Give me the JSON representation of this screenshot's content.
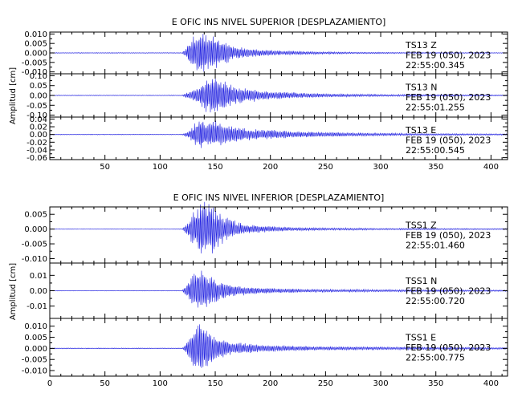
{
  "chart_data": [
    {
      "type": "line",
      "title": "E OFIC INS NIVEL SUPERIOR [DESPLAZAMIENTO]",
      "xlabel": "",
      "ylabel": "Amplitud [cm]",
      "xlim": [
        0,
        415
      ],
      "xticks": [
        50,
        100,
        150,
        200,
        250,
        300,
        350,
        400
      ],
      "xtick_labels": [
        "50",
        "100",
        "150",
        "200",
        "250",
        "300",
        "350",
        "400"
      ],
      "grid": false,
      "series_color": "#1f1fe0",
      "panels": [
        {
          "component": "Z",
          "ylim": [
            -0.011,
            0.011
          ],
          "yticks": [
            -0.01,
            -0.005,
            0.0,
            0.005,
            0.01
          ],
          "ytick_labels": [
            "-0.010",
            "-0.005",
            "0.000",
            "0.005",
            "0.010"
          ],
          "annotation": [
            "TS13   Z",
            "FEB 19 (050), 2023",
            "22:55:00.345"
          ],
          "envelope": [
            [
              0,
              0.0002
            ],
            [
              120,
              0.0002
            ],
            [
              124,
              0.003
            ],
            [
              128,
              0.009
            ],
            [
              135,
              0.011
            ],
            [
              142,
              0.01
            ],
            [
              150,
              0.009
            ],
            [
              165,
              0.004
            ],
            [
              190,
              0.0018
            ],
            [
              230,
              0.0009
            ],
            [
              270,
              0.0005
            ],
            [
              330,
              0.0003
            ],
            [
              415,
              0.0002
            ]
          ]
        },
        {
          "component": "N",
          "ylim": [
            -0.11,
            0.11
          ],
          "yticks": [
            -0.1,
            -0.05,
            0.0,
            0.05,
            0.1
          ],
          "ytick_labels": [
            "-0.10",
            "-0.05",
            "0.00",
            "0.05",
            "0.10"
          ],
          "annotation": [
            "TS13   N",
            "FEB 19 (050), 2023",
            "22:55:01.255"
          ],
          "envelope": [
            [
              0,
              0.002
            ],
            [
              120,
              0.002
            ],
            [
              126,
              0.02
            ],
            [
              135,
              0.05
            ],
            [
              142,
              0.09
            ],
            [
              148,
              0.1
            ],
            [
              156,
              0.08
            ],
            [
              170,
              0.045
            ],
            [
              200,
              0.02
            ],
            [
              250,
              0.01
            ],
            [
              300,
              0.006
            ],
            [
              415,
              0.003
            ]
          ]
        },
        {
          "component": "E",
          "ylim": [
            -0.065,
            0.045
          ],
          "yticks": [
            -0.06,
            -0.04,
            -0.02,
            0.0,
            0.02,
            0.04
          ],
          "ytick_labels": [
            "-0.06",
            "-0.04",
            "-0.02",
            "0.00",
            "0.02",
            "0.04"
          ],
          "annotation": [
            "TS13   E",
            "FEB 19 (050), 2023",
            "22:55:00.545"
          ],
          "envelope": [
            [
              0,
              0.001
            ],
            [
              120,
              0.001
            ],
            [
              126,
              0.01
            ],
            [
              133,
              0.035
            ],
            [
              137,
              0.045
            ],
            [
              142,
              0.03
            ],
            [
              148,
              0.04
            ],
            [
              160,
              0.025
            ],
            [
              185,
              0.015
            ],
            [
              220,
              0.009
            ],
            [
              270,
              0.005
            ],
            [
              330,
              0.003
            ],
            [
              415,
              0.002
            ]
          ]
        }
      ]
    },
    {
      "type": "line",
      "title": "E OFIC INS NIVEL INFERIOR [DESPLAZAMIENTO]",
      "xlabel": "",
      "ylabel": "Amplitud [cm]",
      "xlim": [
        0,
        415
      ],
      "xticks": [
        0,
        50,
        100,
        150,
        200,
        250,
        300,
        350,
        400
      ],
      "xtick_labels": [
        "0",
        "50",
        "100",
        "150",
        "200",
        "250",
        "300",
        "350",
        "400"
      ],
      "grid": false,
      "series_color": "#1f1fe0",
      "panels": [
        {
          "component": "Z",
          "ylim": [
            -0.0115,
            0.0075
          ],
          "yticks": [
            -0.01,
            -0.005,
            0.0,
            0.005
          ],
          "ytick_labels": [
            "-0.010",
            "-0.005",
            "0.000",
            "0.005"
          ],
          "annotation": [
            "TSS1   Z",
            "FEB 19 (050), 2023",
            "22:55:01.460"
          ],
          "envelope": [
            [
              0,
              0.0001
            ],
            [
              120,
              0.0001
            ],
            [
              124,
              0.002
            ],
            [
              130,
              0.006
            ],
            [
              138,
              0.01
            ],
            [
              145,
              0.009
            ],
            [
              150,
              0.008
            ],
            [
              160,
              0.004
            ],
            [
              180,
              0.0015
            ],
            [
              220,
              0.0006
            ],
            [
              300,
              0.0003
            ],
            [
              415,
              0.0002
            ]
          ]
        },
        {
          "component": "N",
          "ylim": [
            -0.018,
            0.018
          ],
          "yticks": [
            -0.01,
            0.0,
            0.01
          ],
          "ytick_labels": [
            "-0.01",
            "0.00",
            "0.01"
          ],
          "annotation": [
            "TSS1   N",
            "FEB 19 (050), 2023",
            "22:55:00.720"
          ],
          "envelope": [
            [
              0,
              0.0002
            ],
            [
              120,
              0.0002
            ],
            [
              124,
              0.004
            ],
            [
              130,
              0.012
            ],
            [
              136,
              0.016
            ],
            [
              142,
              0.012
            ],
            [
              150,
              0.008
            ],
            [
              165,
              0.004
            ],
            [
              190,
              0.002
            ],
            [
              240,
              0.001
            ],
            [
              415,
              0.0005
            ]
          ]
        },
        {
          "component": "E",
          "ylim": [
            -0.0125,
            0.0135
          ],
          "yticks": [
            -0.01,
            -0.005,
            0.0,
            0.005,
            0.01
          ],
          "ytick_labels": [
            "-0.010",
            "-0.005",
            "0.000",
            "0.005",
            "0.010"
          ],
          "annotation": [
            "TSS1   E",
            "FEB 19 (050), 2023",
            "22:55:00.775"
          ],
          "envelope": [
            [
              0,
              0.0002
            ],
            [
              120,
              0.0002
            ],
            [
              124,
              0.003
            ],
            [
              130,
              0.009
            ],
            [
              136,
              0.013
            ],
            [
              142,
              0.01
            ],
            [
              150,
              0.006
            ],
            [
              165,
              0.003
            ],
            [
              190,
              0.0018
            ],
            [
              240,
              0.0009
            ],
            [
              415,
              0.0004
            ]
          ]
        }
      ]
    }
  ]
}
